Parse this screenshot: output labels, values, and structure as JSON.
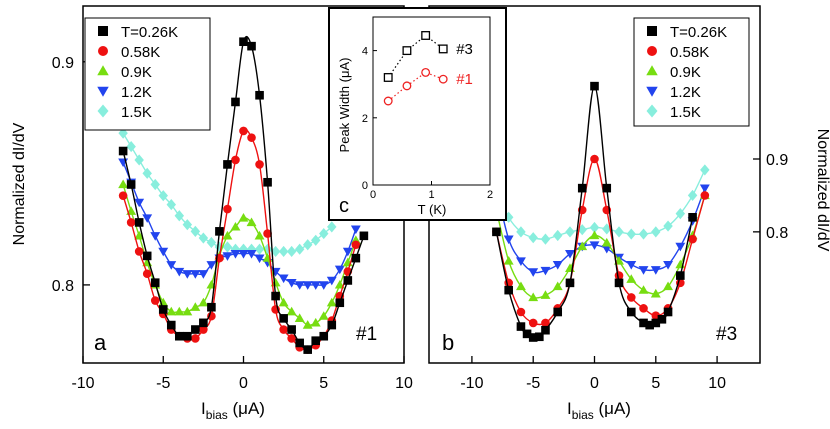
{
  "chart_data": [
    {
      "type": "line",
      "id": "a",
      "panel_label": "a",
      "sample_label": "#1",
      "xlabel_main": "I",
      "xlabel_sub": "bias",
      "xlabel_unit": " (μA)",
      "ylabel": "Normalized dI/dV",
      "xlim": [
        -10,
        10
      ],
      "ylim": [
        0.765,
        0.925
      ],
      "xticks": [
        -10,
        -5,
        0,
        5,
        10
      ],
      "yticks": [
        0.8,
        0.9
      ],
      "legend_position": "top-left",
      "series": [
        {
          "name": "T=0.26K",
          "color": "#000000",
          "marker": "square",
          "x": [
            -7.5,
            -7,
            -6.5,
            -6,
            -5.5,
            -5,
            -4.5,
            -4,
            -3.5,
            -3,
            -2.5,
            -2,
            -1.5,
            -1,
            -0.5,
            0,
            0.5,
            1,
            1.5,
            2,
            2.5,
            3,
            3.5,
            4,
            4.5,
            5,
            5.5,
            6,
            6.5,
            7,
            7.5
          ],
          "y": [
            0.86,
            0.845,
            0.828,
            0.813,
            0.801,
            0.789,
            0.782,
            0.777,
            0.777,
            0.78,
            0.783,
            0.79,
            0.824,
            0.854,
            0.882,
            0.909,
            0.907,
            0.885,
            0.846,
            0.795,
            0.785,
            0.78,
            0.774,
            0.771,
            0.775,
            0.777,
            0.782,
            0.792,
            0.802,
            0.812,
            0.822
          ]
        },
        {
          "name": "0.58K",
          "color": "#ee1111",
          "marker": "circle",
          "x": [
            -7.5,
            -7,
            -6.5,
            -6,
            -5.5,
            -5,
            -4.5,
            -4,
            -3.5,
            -3,
            -2.5,
            -2,
            -1.5,
            -1,
            -0.5,
            0,
            0.5,
            1,
            1.5,
            2,
            2.5,
            3,
            3.5,
            4,
            4.5,
            5,
            5.5,
            6,
            6.5,
            7
          ],
          "y": [
            0.84,
            0.828,
            0.815,
            0.805,
            0.793,
            0.787,
            0.78,
            0.777,
            0.776,
            0.776,
            0.78,
            0.786,
            0.812,
            0.834,
            0.856,
            0.869,
            0.866,
            0.854,
            0.823,
            0.789,
            0.78,
            0.776,
            0.772,
            0.771,
            0.773,
            0.777,
            0.784,
            0.795,
            0.806,
            0.818
          ]
        },
        {
          "name": "0.9K",
          "color": "#77dd11",
          "marker": "triangle-up",
          "x": [
            -7.5,
            -7,
            -6.5,
            -6,
            -5.5,
            -5,
            -4.5,
            -4,
            -3.5,
            -3,
            -2.5,
            -2,
            -1.5,
            -1,
            -0.5,
            0,
            0.5,
            1,
            1.5,
            2,
            2.5,
            3,
            3.5,
            4,
            4.5,
            5,
            5.5,
            6,
            6.5,
            7
          ],
          "y": [
            0.845,
            0.833,
            0.822,
            0.81,
            0.8,
            0.792,
            0.788,
            0.788,
            0.788,
            0.79,
            0.792,
            0.8,
            0.813,
            0.822,
            0.826,
            0.83,
            0.828,
            0.822,
            0.812,
            0.801,
            0.792,
            0.788,
            0.785,
            0.782,
            0.783,
            0.786,
            0.792,
            0.8,
            0.81,
            0.82
          ]
        },
        {
          "name": "1.2K",
          "color": "#2244ee",
          "marker": "triangle-down",
          "x": [
            -7.5,
            -7,
            -6.5,
            -6,
            -5.5,
            -5,
            -4.5,
            -4,
            -3.5,
            -3,
            -2.5,
            -2,
            -1.5,
            -1,
            -0.5,
            0,
            0.5,
            1,
            1.5,
            2,
            2.5,
            3,
            3.5,
            4,
            4.5,
            5,
            5.5,
            6,
            6.5,
            7
          ],
          "y": [
            0.855,
            0.846,
            0.837,
            0.83,
            0.822,
            0.815,
            0.809,
            0.806,
            0.805,
            0.805,
            0.805,
            0.809,
            0.812,
            0.813,
            0.814,
            0.814,
            0.814,
            0.812,
            0.81,
            0.806,
            0.803,
            0.801,
            0.8,
            0.8,
            0.8,
            0.8,
            0.802,
            0.807,
            0.815,
            0.825
          ]
        },
        {
          "name": "1.5K",
          "color": "#88eedd",
          "marker": "diamond",
          "x": [
            -7.5,
            -7,
            -6.5,
            -6,
            -5.5,
            -5,
            -4.5,
            -4,
            -3.5,
            -3,
            -2.5,
            -2,
            -1.5,
            -1,
            -0.5,
            0,
            0.5,
            1,
            1.5,
            2,
            2.5,
            3,
            3.5,
            4,
            4.5,
            5,
            5.5
          ],
          "y": [
            0.868,
            0.862,
            0.856,
            0.85,
            0.845,
            0.84,
            0.836,
            0.831,
            0.827,
            0.824,
            0.821,
            0.819,
            0.817,
            0.817,
            0.816,
            0.816,
            0.816,
            0.816,
            0.816,
            0.815,
            0.815,
            0.815,
            0.816,
            0.818,
            0.82,
            0.823,
            0.826
          ]
        }
      ]
    },
    {
      "type": "line",
      "id": "b",
      "panel_label": "b",
      "sample_label": "#3",
      "xlabel_main": "I",
      "xlabel_sub": "bias",
      "xlabel_unit": " (μA)",
      "ylabel": "Normalized dI/dV",
      "xlim": [
        -13.5,
        13.5
      ],
      "ylim": [
        0.62,
        1.11
      ],
      "xticks": [
        -10,
        -5,
        0,
        5,
        10
      ],
      "yticks": [
        0.8,
        0.9
      ],
      "legend_position": "top-right",
      "series": [
        {
          "name": "T=0.26K",
          "color": "#000000",
          "marker": "square",
          "x": [
            -8,
            -7,
            -6,
            -5.5,
            -5,
            -4.5,
            -4,
            -3,
            -2,
            -1,
            0,
            1,
            2,
            3,
            4,
            4.5,
            5,
            5.5,
            6,
            7,
            8
          ],
          "y": [
            0.8,
            0.72,
            0.67,
            0.66,
            0.655,
            0.656,
            0.665,
            0.69,
            0.73,
            0.86,
            1.0,
            0.86,
            0.73,
            0.69,
            0.675,
            0.672,
            0.675,
            0.68,
            0.69,
            0.74,
            0.82
          ]
        },
        {
          "name": "0.58K",
          "color": "#ee1111",
          "marker": "circle",
          "x": [
            -8,
            -7,
            -6,
            -5,
            -4,
            -3,
            -2,
            -1,
            0,
            1,
            2,
            3,
            4,
            5,
            6,
            7,
            8,
            9
          ],
          "y": [
            0.8,
            0.73,
            0.69,
            0.675,
            0.675,
            0.695,
            0.73,
            0.83,
            0.9,
            0.83,
            0.74,
            0.71,
            0.695,
            0.685,
            0.695,
            0.73,
            0.79,
            0.85
          ]
        },
        {
          "name": "0.9K",
          "color": "#77dd11",
          "marker": "triangle-up",
          "x": [
            -8,
            -7,
            -6,
            -5,
            -4,
            -3,
            -2,
            -1,
            0,
            1,
            2,
            3,
            4,
            5,
            6,
            7,
            8,
            9
          ],
          "y": [
            0.83,
            0.76,
            0.725,
            0.71,
            0.713,
            0.725,
            0.75,
            0.78,
            0.795,
            0.785,
            0.76,
            0.735,
            0.72,
            0.715,
            0.725,
            0.755,
            0.795,
            0.85
          ]
        },
        {
          "name": "1.2K",
          "color": "#2244ee",
          "marker": "triangle-down",
          "x": [
            -8,
            -7,
            -6,
            -5,
            -4,
            -3,
            -2,
            -1,
            0,
            1,
            2,
            3,
            4,
            5,
            6,
            7,
            8,
            9
          ],
          "y": [
            0.86,
            0.79,
            0.76,
            0.745,
            0.747,
            0.755,
            0.77,
            0.78,
            0.782,
            0.777,
            0.765,
            0.755,
            0.748,
            0.748,
            0.755,
            0.78,
            0.815,
            0.86
          ]
        },
        {
          "name": "1.5K",
          "color": "#88eedd",
          "marker": "diamond",
          "x": [
            -8,
            -7,
            -6,
            -5,
            -4,
            -3,
            -2,
            -1,
            0,
            1,
            2,
            3,
            4,
            5,
            6,
            7,
            8,
            9
          ],
          "y": [
            0.86,
            0.82,
            0.8,
            0.792,
            0.79,
            0.795,
            0.8,
            0.803,
            0.806,
            0.804,
            0.8,
            0.797,
            0.797,
            0.8,
            0.808,
            0.825,
            0.85,
            0.885
          ]
        }
      ]
    },
    {
      "type": "scatter",
      "id": "c",
      "panel_label": "c",
      "xlabel": "T (K)",
      "ylabel": "Peak Width (μA)",
      "xlim": [
        0,
        2
      ],
      "ylim": [
        0,
        5
      ],
      "xticks": [
        0,
        1,
        2
      ],
      "yticks": [
        0,
        2,
        4
      ],
      "series": [
        {
          "name": "#3",
          "color": "#000000",
          "marker": "open-square",
          "x": [
            0.26,
            0.58,
            0.9,
            1.2
          ],
          "y": [
            3.2,
            4.0,
            4.45,
            4.05
          ]
        },
        {
          "name": "#1",
          "color": "#ee2222",
          "marker": "open-circle",
          "x": [
            0.26,
            0.58,
            0.9,
            1.2
          ],
          "y": [
            2.5,
            2.95,
            3.35,
            3.15
          ]
        }
      ]
    }
  ]
}
